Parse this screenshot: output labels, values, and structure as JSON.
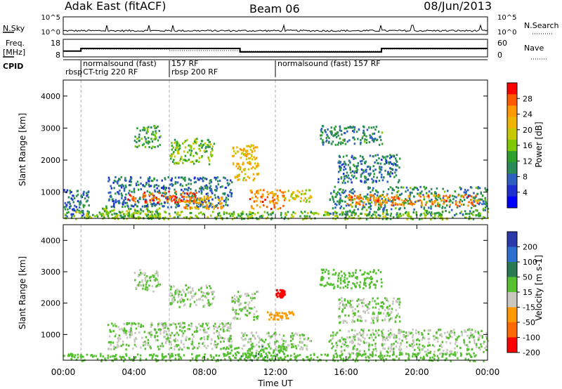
{
  "header": {
    "station": "Adak East (fitACF)",
    "beam": "Beam 06",
    "date": "08/Jun/2013"
  },
  "noise_panel": {
    "left_label": "N.Sky",
    "right_label": "N.Search",
    "left_ticks": [
      "10^5",
      "10^0"
    ],
    "right_ticks": [
      "10^5",
      "10^0"
    ]
  },
  "freq_panel": {
    "left_label_line1": "Freq.",
    "left_label_line2": "[MHz]",
    "right_label": "Nave",
    "left_ticks": [
      "18",
      "8"
    ],
    "right_ticks": [
      "60",
      "0"
    ],
    "freq_steps": [
      {
        "start_h": 0.0,
        "end_h": 1.0,
        "mhz": 11.0
      },
      {
        "start_h": 1.0,
        "end_h": 10.0,
        "mhz": 12.6
      },
      {
        "start_h": 10.0,
        "end_h": 18.0,
        "mhz": 10.5
      },
      {
        "start_h": 18.0,
        "end_h": 24.0,
        "mhz": 12.6
      }
    ],
    "nave_steps": [
      {
        "start_h": 0.0,
        "end_h": 1.0,
        "nave": 18
      },
      {
        "start_h": 1.0,
        "end_h": 6.0,
        "nave": 25
      },
      {
        "start_h": 6.0,
        "end_h": 10.0,
        "nave": 20
      },
      {
        "start_h": 10.0,
        "end_h": 18.0,
        "nave": 18
      },
      {
        "start_h": 18.0,
        "end_h": 24.0,
        "nave": 25
      }
    ]
  },
  "cpid": {
    "label": "CPID",
    "segments": [
      {
        "start_h": 0.0,
        "end_h": 1.0,
        "line1": "",
        "line2": "rbsp"
      },
      {
        "start_h": 1.0,
        "end_h": 6.0,
        "line1": "normalsound (fast)",
        "line2": "CT-trig 220 RF"
      },
      {
        "start_h": 6.0,
        "end_h": 12.0,
        "line1": "157 RF",
        "line2": "rbsp 200 RF"
      },
      {
        "start_h": 12.0,
        "end_h": 24.0,
        "line1": "normalsound (fast) 157 RF",
        "line2": ""
      }
    ]
  },
  "x_axis": {
    "label": "Time UT",
    "tick_labels": [
      "00:00",
      "04:00",
      "08:00",
      "12:00",
      "16:00",
      "20:00",
      "00:00"
    ]
  },
  "colorbars": {
    "power": {
      "label": "Power [dB]",
      "tick_labels": [
        "28",
        "24",
        "20",
        "16",
        "12",
        "8",
        "4"
      ],
      "colors": [
        "#ff0000",
        "#ff5a00",
        "#ff9900",
        "#f0b400",
        "#c8c800",
        "#80c800",
        "#2ca02c",
        "#2a8a5a",
        "#2f5fc0",
        "#1d2fd0",
        "#0000ff"
      ]
    },
    "velocity": {
      "label": "Velocity [m s-1]",
      "tick_labels": [
        "200",
        "100",
        "50",
        "15",
        "-15",
        "-50",
        "-100",
        "-200"
      ],
      "colors": [
        "#2b3aa8",
        "#2c6fd0",
        "#2a7a55",
        "#55c030",
        "#c8c8c0",
        "#ff9900",
        "#ff6a00",
        "#ff0000"
      ]
    }
  },
  "chart_data": [
    {
      "type": "heatmap",
      "title": "Power",
      "xlabel": "Time UT",
      "ylabel": "Slant Range [km]",
      "xlim": [
        0,
        24
      ],
      "ylim": [
        180,
        4500
      ],
      "y_tick_labels": [
        "1000",
        "2000",
        "3000",
        "4000"
      ],
      "colorbar_range": [
        0,
        30
      ],
      "regions": [
        {
          "t0": 0.0,
          "t1": 1.5,
          "r0": 200,
          "r1": 1100,
          "value": 8
        },
        {
          "t0": 2.0,
          "t1": 5.5,
          "r0": 200,
          "r1": 600,
          "value": 14
        },
        {
          "t0": 2.5,
          "t1": 9.5,
          "r0": 550,
          "r1": 1500,
          "value": 8
        },
        {
          "t0": 3.5,
          "t1": 7.5,
          "r0": 700,
          "r1": 1050,
          "value": 26
        },
        {
          "t0": 6.5,
          "t1": 9.0,
          "r0": 500,
          "r1": 900,
          "value": 22
        },
        {
          "t0": 4.0,
          "t1": 5.5,
          "r0": 2400,
          "r1": 3100,
          "value": 12
        },
        {
          "t0": 6.0,
          "t1": 8.5,
          "r0": 1900,
          "r1": 2700,
          "value": 14
        },
        {
          "t0": 9.5,
          "t1": 11.0,
          "r0": 1400,
          "r1": 2500,
          "value": 20
        },
        {
          "t0": 10.5,
          "t1": 12.5,
          "r0": 500,
          "r1": 1100,
          "value": 24
        },
        {
          "t0": 12.5,
          "t1": 14.0,
          "r0": 700,
          "r1": 1100,
          "value": 18
        },
        {
          "t0": 14.5,
          "t1": 18.0,
          "r0": 2500,
          "r1": 3100,
          "value": 10
        },
        {
          "t0": 15.5,
          "t1": 19.0,
          "r0": 1300,
          "r1": 2200,
          "value": 8
        },
        {
          "t0": 15.0,
          "t1": 24.0,
          "r0": 300,
          "r1": 1200,
          "value": 10
        },
        {
          "t0": 16.0,
          "t1": 23.5,
          "r0": 600,
          "r1": 950,
          "value": 24
        },
        {
          "t0": 0.0,
          "t1": 24.0,
          "r0": 180,
          "r1": 420,
          "value": 14
        }
      ]
    },
    {
      "type": "heatmap",
      "title": "Velocity",
      "xlabel": "Time UT",
      "ylabel": "Slant Range [km]",
      "xlim": [
        0,
        24
      ],
      "ylim": [
        180,
        4500
      ],
      "y_tick_labels": [
        "1000",
        "2000",
        "3000",
        "4000"
      ],
      "colorbar_range": [
        -200,
        200
      ],
      "regions": [
        {
          "t0": 2.5,
          "t1": 9.5,
          "r0": 550,
          "r1": 1400,
          "value": 0
        },
        {
          "t0": 4.0,
          "t1": 5.5,
          "r0": 2400,
          "r1": 3100,
          "value": 0
        },
        {
          "t0": 6.0,
          "t1": 8.5,
          "r0": 1900,
          "r1": 2600,
          "value": 0
        },
        {
          "t0": 9.5,
          "t1": 11.0,
          "r0": 1500,
          "r1": 2400,
          "value": 0
        },
        {
          "t0": 11.5,
          "t1": 13.0,
          "r0": 1500,
          "r1": 1750,
          "value": -60
        },
        {
          "t0": 12.0,
          "t1": 12.5,
          "r0": 2200,
          "r1": 2450,
          "value": -200
        },
        {
          "t0": 10.0,
          "t1": 14.0,
          "r0": 500,
          "r1": 1100,
          "value": 0
        },
        {
          "t0": 9.0,
          "t1": 12.5,
          "r0": 200,
          "r1": 650,
          "value": 40
        },
        {
          "t0": 14.5,
          "t1": 18.0,
          "r0": 2500,
          "r1": 3100,
          "value": 20
        },
        {
          "t0": 15.5,
          "t1": 19.0,
          "r0": 1400,
          "r1": 2200,
          "value": 0
        },
        {
          "t0": 15.0,
          "t1": 24.0,
          "r0": 400,
          "r1": 1200,
          "value": 0
        },
        {
          "t0": 0.0,
          "t1": 24.0,
          "r0": 180,
          "r1": 420,
          "value": 30
        }
      ]
    }
  ]
}
